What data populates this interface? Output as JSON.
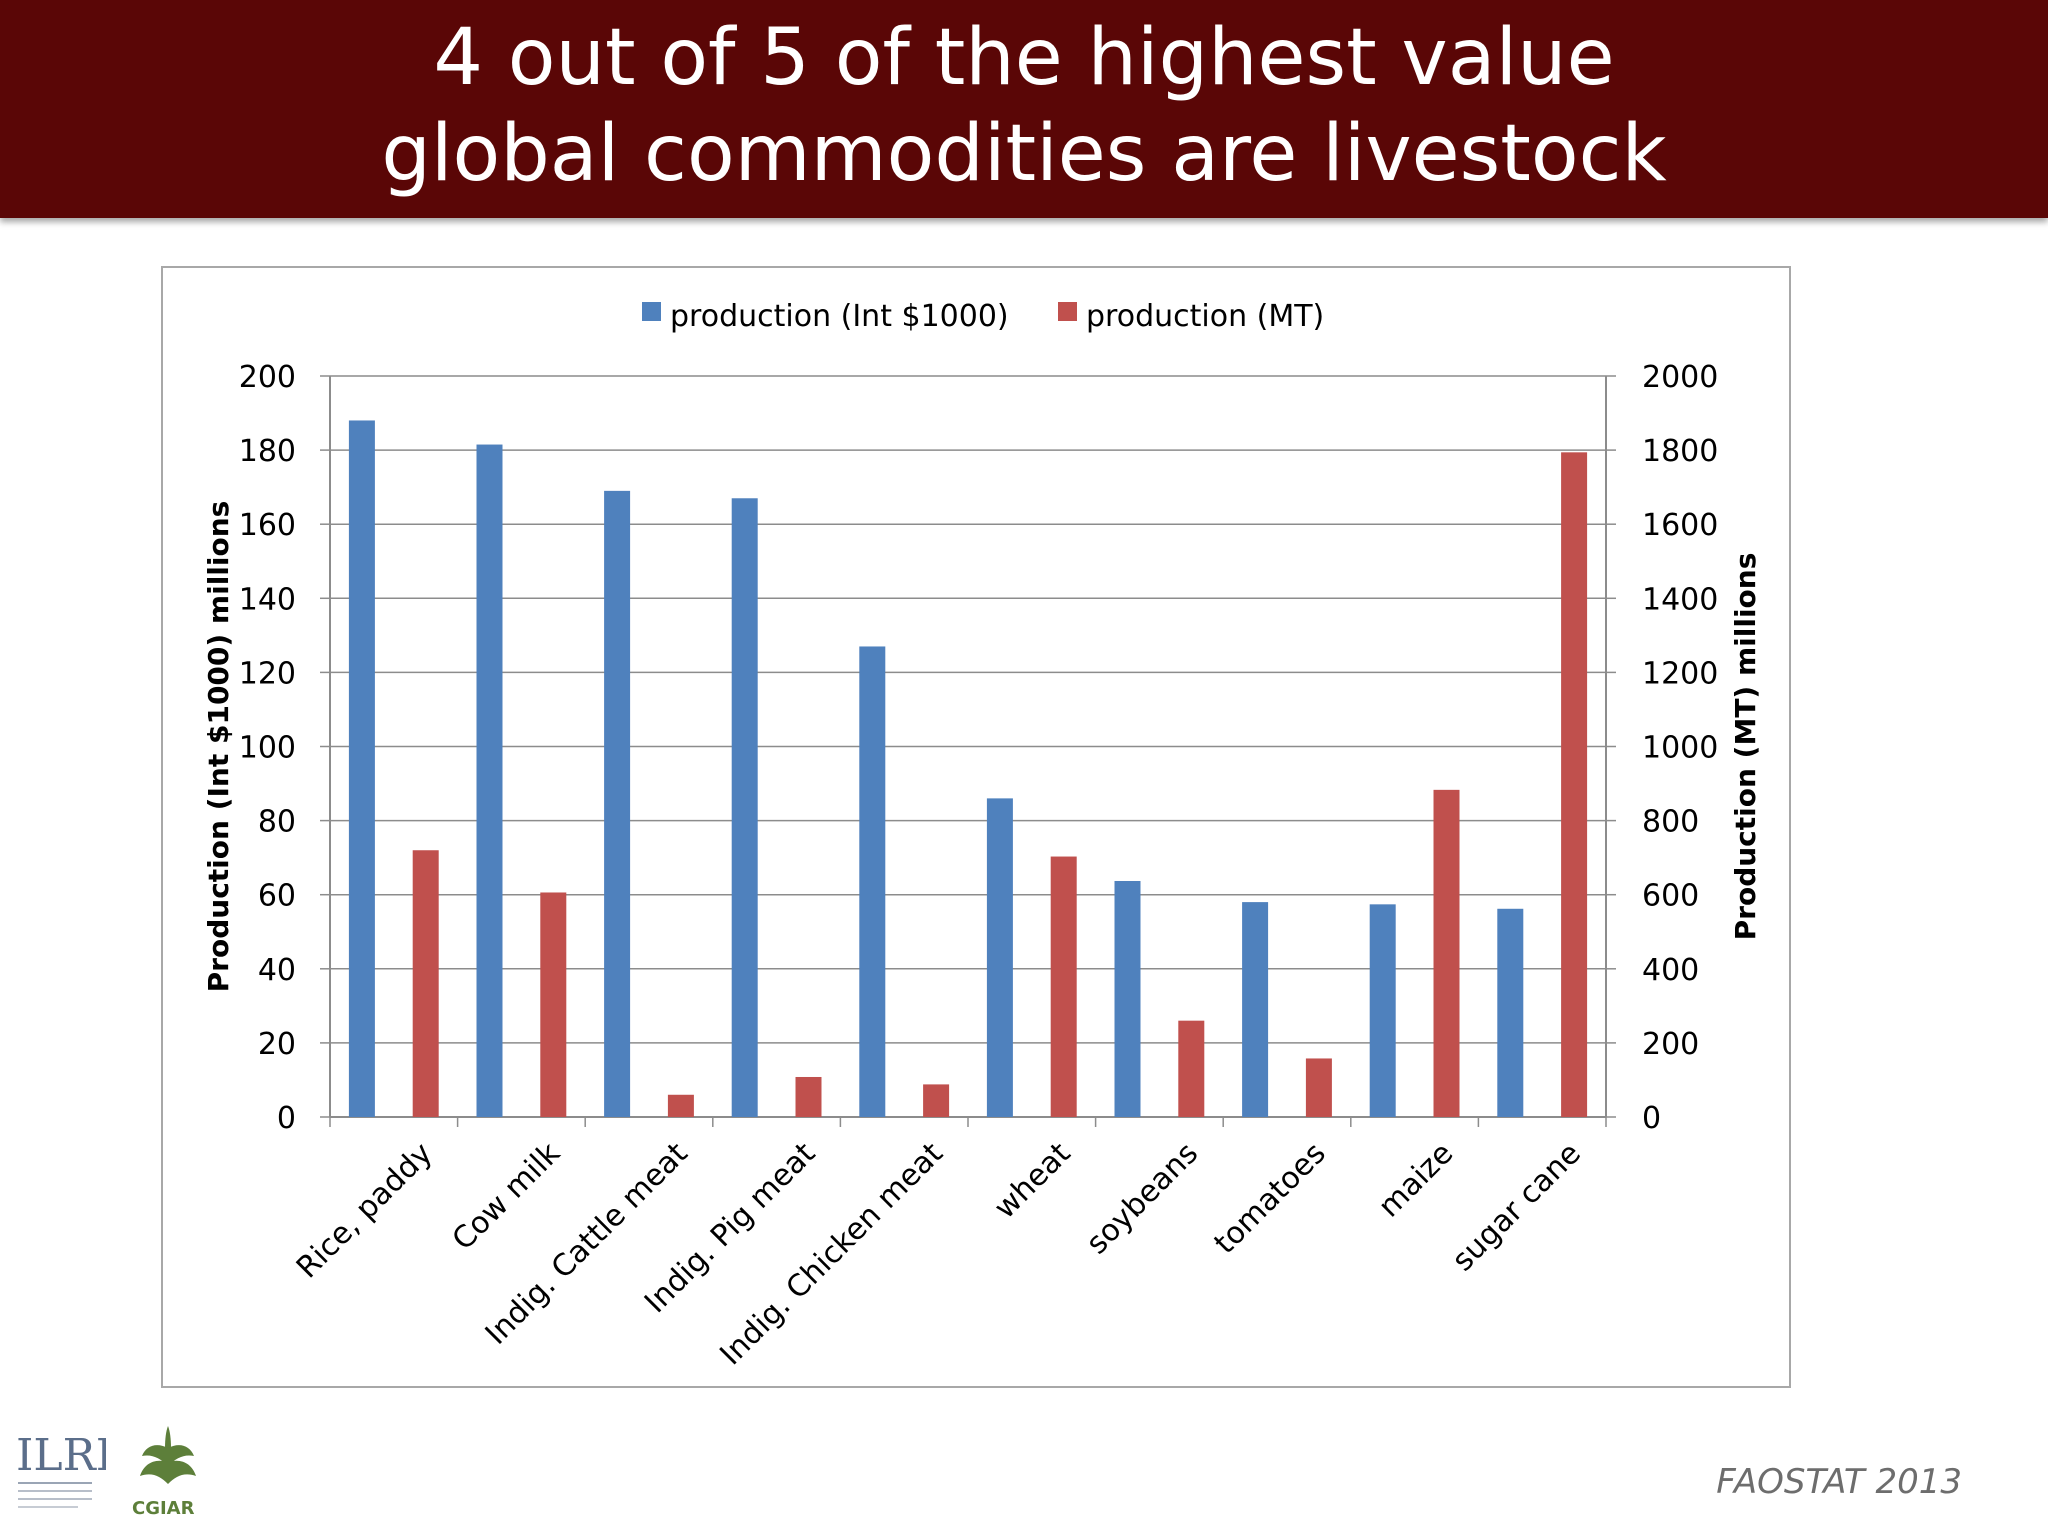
{
  "slide": {
    "title_line1": "4 out of 5 of the highest value",
    "title_line2": "global commodities are livestock",
    "source": "FAOSTAT 2013",
    "logo_ilri_text": "ILRI",
    "logo_cgiar_text": "CGIAR",
    "colors": {
      "banner": "#5a0606",
      "series_value": "#4f81bd",
      "series_mt": "#c0504d"
    }
  },
  "chart_data": {
    "type": "bar",
    "title": "",
    "categories": [
      "Rice, paddy",
      "Cow milk",
      "Indig. Cattle meat",
      "Indig. Pig meat",
      "Indig. Chicken meat",
      "wheat",
      "soybeans",
      "tomatoes",
      "maize",
      "sugar cane"
    ],
    "series": [
      {
        "name": "production (Int $1000)",
        "axis": "left",
        "color": "#4f81bd",
        "values": [
          188,
          181.5,
          169,
          167,
          127,
          86,
          63.7,
          58,
          57.4,
          56.2
        ]
      },
      {
        "name": "production (MT)",
        "axis": "right",
        "color": "#c0504d",
        "values": [
          720,
          606,
          60,
          108,
          88,
          703,
          260,
          158,
          883,
          1794
        ]
      }
    ],
    "ylabel": "Production (Int $1000) millions",
    "ylabel_right": "Production (MT) millions",
    "ylim": [
      0,
      200
    ],
    "ylim_right": [
      0,
      2000
    ],
    "yticks": [
      0,
      20,
      40,
      60,
      80,
      100,
      120,
      140,
      160,
      180,
      200
    ],
    "yticks_right": [
      0,
      200,
      400,
      600,
      800,
      1000,
      1200,
      1400,
      1600,
      1800,
      2000
    ],
    "grid": true,
    "legend_position": "top"
  }
}
